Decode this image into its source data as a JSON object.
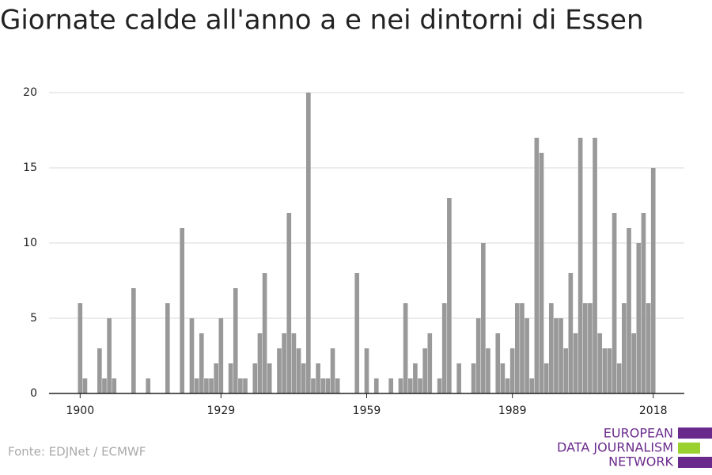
{
  "chart_data": {
    "type": "bar",
    "title": "Giornate calde all'anno a e nei dintorni di Essen",
    "source": "Fonte: EDJNet / ECMWF",
    "logo": [
      "EUROPEAN",
      "DATA JOURNALISM",
      "NETWORK"
    ],
    "color": "#999999",
    "grid": true,
    "x": [
      1900,
      1901,
      1902,
      1903,
      1904,
      1905,
      1906,
      1907,
      1908,
      1909,
      1910,
      1911,
      1912,
      1913,
      1914,
      1915,
      1916,
      1917,
      1918,
      1919,
      1920,
      1921,
      1922,
      1923,
      1924,
      1925,
      1926,
      1927,
      1928,
      1929,
      1930,
      1931,
      1932,
      1933,
      1934,
      1935,
      1936,
      1937,
      1938,
      1939,
      1940,
      1941,
      1942,
      1943,
      1944,
      1945,
      1946,
      1947,
      1948,
      1949,
      1950,
      1951,
      1952,
      1953,
      1954,
      1955,
      1956,
      1957,
      1958,
      1959,
      1960,
      1961,
      1962,
      1963,
      1964,
      1965,
      1966,
      1967,
      1968,
      1969,
      1970,
      1971,
      1972,
      1973,
      1974,
      1975,
      1976,
      1977,
      1978,
      1979,
      1980,
      1981,
      1982,
      1983,
      1984,
      1985,
      1986,
      1987,
      1988,
      1989,
      1990,
      1991,
      1992,
      1993,
      1994,
      1995,
      1996,
      1997,
      1998,
      1999,
      2000,
      2001,
      2002,
      2003,
      2004,
      2005,
      2006,
      2007,
      2008,
      2009,
      2010,
      2011,
      2012,
      2013,
      2014,
      2015,
      2016,
      2017,
      2018
    ],
    "values": [
      6,
      1,
      0,
      0,
      3,
      1,
      5,
      1,
      0,
      0,
      0,
      7,
      0,
      0,
      1,
      0,
      0,
      0,
      6,
      0,
      0,
      11,
      0,
      5,
      1,
      4,
      1,
      1,
      2,
      5,
      0,
      2,
      7,
      1,
      1,
      0,
      2,
      4,
      8,
      2,
      0,
      3,
      4,
      12,
      4,
      3,
      2,
      20,
      1,
      2,
      1,
      1,
      3,
      1,
      0,
      0,
      0,
      8,
      0,
      3,
      0,
      1,
      0,
      0,
      1,
      0,
      1,
      6,
      1,
      2,
      1,
      3,
      4,
      0,
      1,
      6,
      13,
      0,
      2,
      0,
      0,
      2,
      5,
      10,
      3,
      0,
      4,
      2,
      1,
      3,
      6,
      6,
      5,
      1,
      17,
      16,
      2,
      6,
      5,
      5,
      3,
      8,
      4,
      17,
      6,
      6,
      17,
      4,
      3,
      3,
      12,
      2,
      6,
      11,
      4,
      10,
      12,
      6,
      15
    ],
    "xlim": [
      1893.6,
      2024.4
    ],
    "xticks": [
      1900,
      1929,
      1959,
      1989,
      2018
    ],
    "ylim": [
      0,
      20
    ],
    "yticks": [
      0,
      5,
      10,
      15,
      20
    ]
  }
}
